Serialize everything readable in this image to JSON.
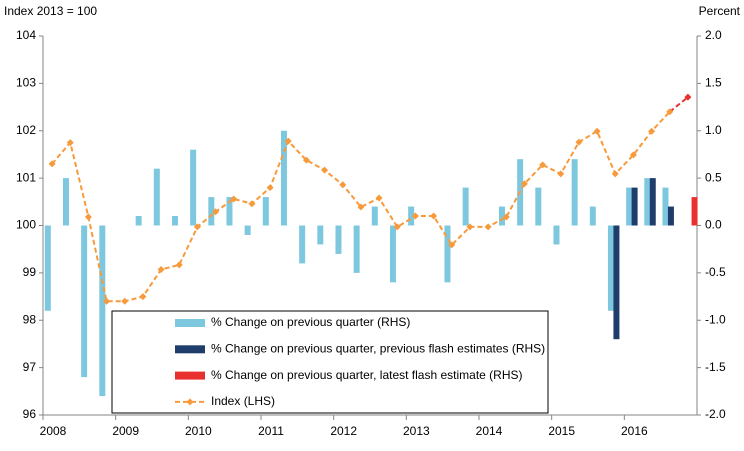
{
  "chart_data": {
    "type": "bar-line",
    "y_label": "Index 2013 = 100",
    "y2_label": "Percent",
    "categories": [
      "2008",
      null,
      null,
      null,
      "2009",
      null,
      null,
      null,
      "2010",
      null,
      null,
      null,
      "2011",
      null,
      null,
      null,
      "2012",
      null,
      null,
      null,
      "2013",
      null,
      null,
      null,
      "2014",
      null,
      null,
      null,
      "2015",
      null,
      null,
      null,
      "2016",
      null,
      null,
      null
    ],
    "ylim": [
      96,
      104
    ],
    "yticks": [
      96,
      97,
      98,
      99,
      100,
      101,
      102,
      103,
      104
    ],
    "y2lim": [
      -2.0,
      2.0
    ],
    "y2ticks": [
      {
        "value": -2,
        "label": "-2.0"
      },
      -1.5,
      {
        "value": -1,
        "label": "-1.0"
      },
      -0.5,
      {
        "value": 0,
        "label": "0.0"
      },
      0.5,
      {
        "value": 1,
        "label": "1.0"
      },
      1.5,
      {
        "value": 2,
        "label": "2.0"
      }
    ],
    "grid": false,
    "series": [
      {
        "name": "% Change on previous quarter (RHS)",
        "type": "bar",
        "axis": "y2",
        "color": "#7ec8df",
        "values": [
          -0.9,
          0.5,
          -1.6,
          -1.8,
          0,
          0.1,
          0.6,
          0.1,
          0.8,
          0.3,
          0.3,
          -0.1,
          0.3,
          1.0,
          -0.4,
          -0.2,
          -0.3,
          -0.5,
          0.2,
          -0.6,
          0.2,
          0,
          -0.6,
          0.4,
          0,
          0.2,
          0.7,
          0.4,
          -0.2,
          0.7,
          0.2,
          -0.9,
          0.4,
          0.5,
          0.4,
          null
        ]
      },
      {
        "name": "% Change on previous quarter, previous flash estimates (RHS)",
        "type": "bar",
        "axis": "y2",
        "color": "#1f3d6b",
        "values": [
          null,
          null,
          null,
          null,
          null,
          null,
          null,
          null,
          null,
          null,
          null,
          null,
          null,
          null,
          null,
          null,
          null,
          null,
          null,
          null,
          null,
          null,
          null,
          null,
          null,
          null,
          null,
          null,
          null,
          null,
          null,
          -1.2,
          0.4,
          0.5,
          0.2,
          null
        ]
      },
      {
        "name": "% Change on previous quarter, latest flash estimate (RHS)",
        "type": "bar",
        "axis": "y2",
        "color": "#e8312f",
        "values": [
          null,
          null,
          null,
          null,
          null,
          null,
          null,
          null,
          null,
          null,
          null,
          null,
          null,
          null,
          null,
          null,
          null,
          null,
          null,
          null,
          null,
          null,
          null,
          null,
          null,
          null,
          null,
          null,
          null,
          null,
          null,
          null,
          null,
          null,
          null,
          0.3
        ]
      },
      {
        "name": "Index (LHS)",
        "type": "line",
        "axis": "y",
        "color": "#f79a3c",
        "latest_color": "#e8312f",
        "values": [
          101.3,
          101.75,
          100.18,
          98.4,
          98.4,
          98.5,
          99.07,
          99.17,
          99.97,
          100.29,
          100.56,
          100.46,
          100.8,
          101.78,
          101.38,
          101.17,
          100.86,
          100.39,
          100.58,
          99.97,
          100.2,
          100.2,
          99.59,
          99.97,
          99.97,
          100.18,
          100.88,
          101.28,
          101.09,
          101.76,
          101.99,
          101.09,
          101.49,
          101.99,
          102.4,
          102.71
        ]
      }
    ],
    "legend": "lower-center"
  }
}
